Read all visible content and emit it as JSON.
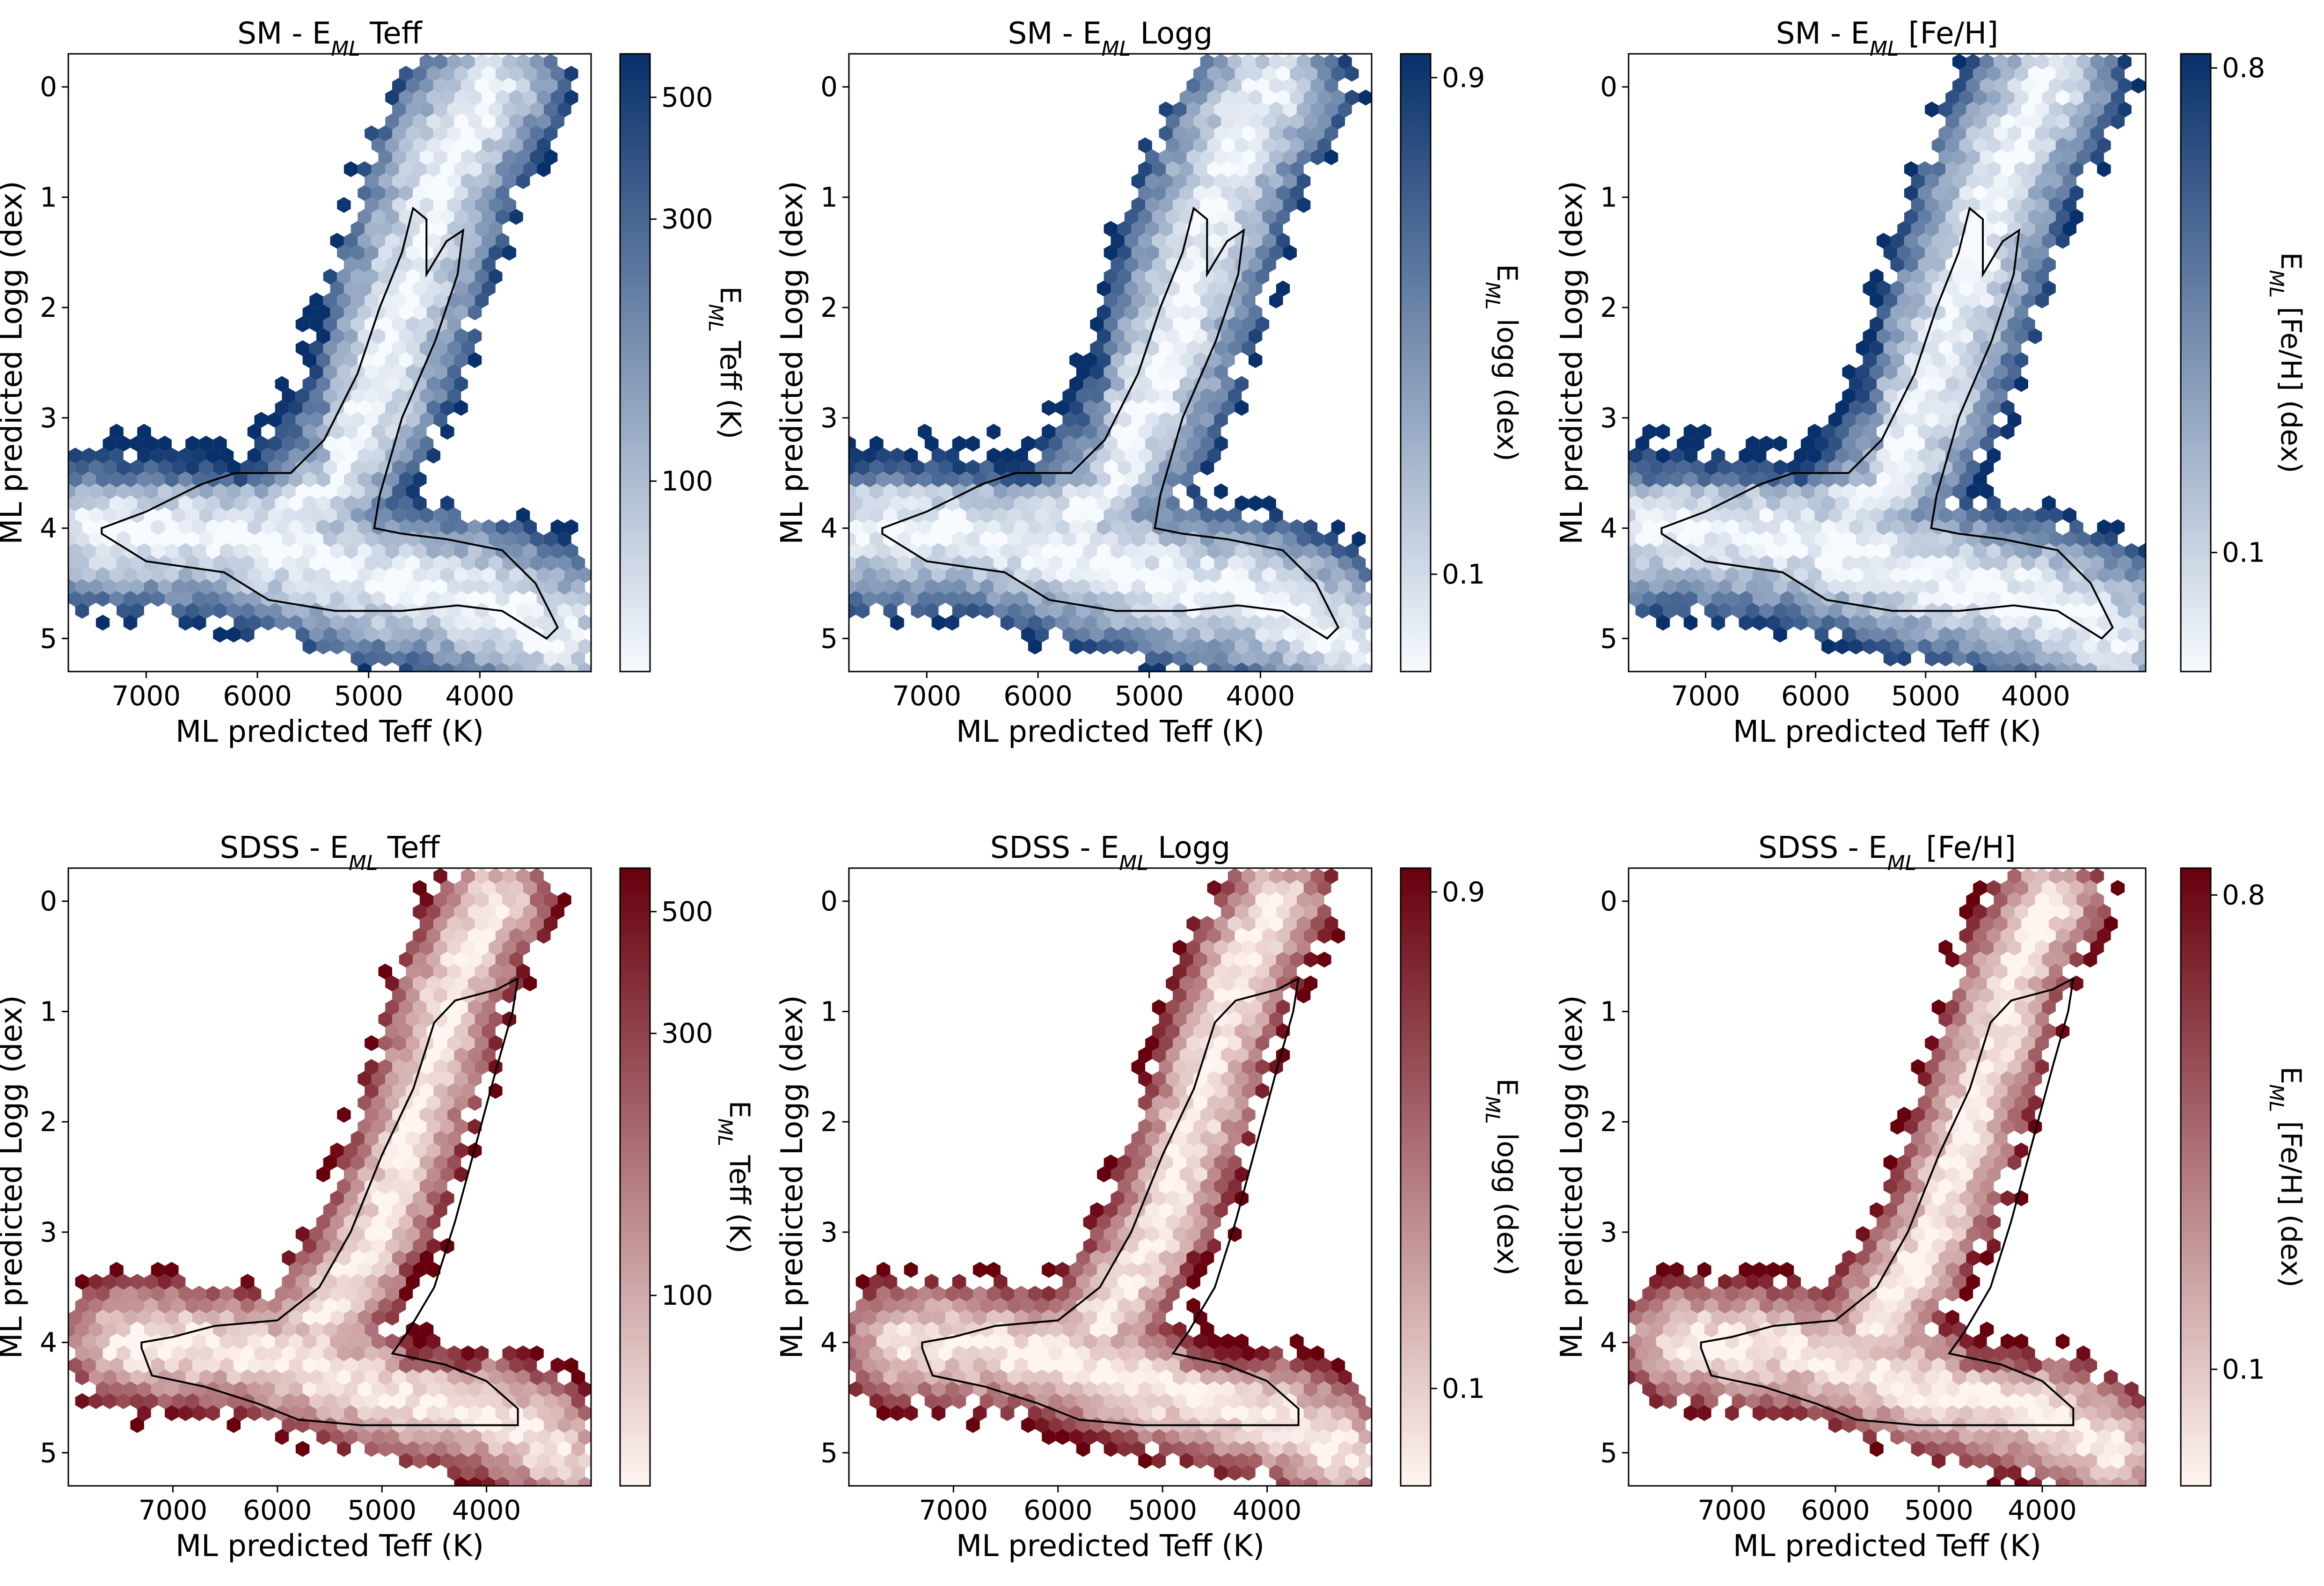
{
  "panels": [
    {
      "title_pre": "SM - E",
      "title_sub": "ML",
      "title_post": " Teff",
      "colorbar_label": "EML Teff (K)",
      "cb_label_pre": "E",
      "cb_label_sub": "ML",
      "cb_label_post": " Teff (K)",
      "scheme": "blue"
    },
    {
      "title_pre": "SM - E",
      "title_sub": "ML",
      "title_post": " Logg",
      "colorbar_label": "EML logg (dex)",
      "cb_label_pre": "E",
      "cb_label_sub": "ML",
      "cb_label_post": " logg (dex)",
      "scheme": "blue"
    },
    {
      "title_pre": "SM - E",
      "title_sub": "ML",
      "title_post": " [Fe/H]",
      "colorbar_label": "EML [Fe/H] (dex)",
      "cb_label_pre": "E",
      "cb_label_sub": "ML",
      "cb_label_post": " [Fe/H] (dex)",
      "scheme": "blue"
    },
    {
      "title_pre": "SDSS - E",
      "title_sub": "ML",
      "title_post": " Teff",
      "colorbar_label": "EML Teff (K)",
      "cb_label_pre": "E",
      "cb_label_sub": "ML",
      "cb_label_post": " Teff (K)",
      "scheme": "red"
    },
    {
      "title_pre": "SDSS - E",
      "title_sub": "ML",
      "title_post": " Logg",
      "colorbar_label": "EML logg (dex)",
      "cb_label_pre": "E",
      "cb_label_sub": "ML",
      "cb_label_post": " logg (dex)",
      "scheme": "red"
    },
    {
      "title_pre": "SDSS - E",
      "title_sub": "ML",
      "title_post": " [Fe/H]",
      "colorbar_label": "EML [Fe/H] (dex)",
      "cb_label_pre": "E",
      "cb_label_sub": "ML",
      "cb_label_post": " [Fe/H] (dex)",
      "scheme": "red"
    }
  ],
  "colors": {
    "blue_low": "#f7fbff",
    "blue_high": "#08306b",
    "red_low": "#fff5f0",
    "red_high": "#67000d",
    "contour": "#000000"
  },
  "chart_data": [
    {
      "type": "heatmap",
      "subtype": "hexbin",
      "title": "SM - EML Teff",
      "xlabel": "ML predicted Teff (K)",
      "ylabel": "ML predicted Logg (dex)",
      "colorbar_label": "EML Teff (K)",
      "xlim": [
        7700,
        3000
      ],
      "ylim": [
        5.3,
        -0.3
      ],
      "xticks": [
        "7000",
        "6000",
        "5000",
        "4000"
      ],
      "yticks": [
        "0",
        "1",
        "2",
        "3",
        "4",
        "5"
      ],
      "colorbar_scale": "log",
      "colorbar_range": [
        45,
        600
      ],
      "colorbar_ticks": [
        "100",
        "300",
        "500"
      ]
    },
    {
      "type": "heatmap",
      "subtype": "hexbin",
      "title": "SM - EML Logg",
      "xlabel": "ML predicted Teff (K)",
      "ylabel": "ML predicted Logg (dex)",
      "colorbar_label": "EML logg (dex)",
      "xlim": [
        7700,
        3000
      ],
      "ylim": [
        5.3,
        -0.3
      ],
      "xticks": [
        "7000",
        "6000",
        "5000",
        "4000"
      ],
      "yticks": [
        "0",
        "1",
        "2",
        "3",
        "4",
        "5"
      ],
      "colorbar_scale": "log",
      "colorbar_range": [
        0.065,
        1.0
      ],
      "colorbar_ticks": [
        "0.1",
        "0.9"
      ]
    },
    {
      "type": "heatmap",
      "subtype": "hexbin",
      "title": "SM - EML [Fe/H]",
      "xlabel": "ML predicted Teff (K)",
      "ylabel": "ML predicted Logg (dex)",
      "colorbar_label": "EML [Fe/H] (dex)",
      "xlim": [
        7700,
        3000
      ],
      "ylim": [
        5.3,
        -0.3
      ],
      "xticks": [
        "7000",
        "6000",
        "5000",
        "4000"
      ],
      "yticks": [
        "0",
        "1",
        "2",
        "3",
        "4",
        "5"
      ],
      "colorbar_scale": "log",
      "colorbar_range": [
        0.06,
        0.85
      ],
      "colorbar_ticks": [
        "0.1",
        "0.8"
      ]
    },
    {
      "type": "heatmap",
      "subtype": "hexbin",
      "title": "SDSS - EML Teff",
      "xlabel": "ML predicted Teff (K)",
      "ylabel": "ML predicted Logg (dex)",
      "colorbar_label": "EML Teff (K)",
      "xlim": [
        8000,
        3000
      ],
      "ylim": [
        5.3,
        -0.3
      ],
      "xticks": [
        "7000",
        "6000",
        "5000",
        "4000"
      ],
      "yticks": [
        "0",
        "1",
        "2",
        "3",
        "4",
        "5"
      ],
      "colorbar_scale": "log",
      "colorbar_range": [
        45,
        600
      ],
      "colorbar_ticks": [
        "100",
        "300",
        "500"
      ]
    },
    {
      "type": "heatmap",
      "subtype": "hexbin",
      "title": "SDSS - EML Logg",
      "xlabel": "ML predicted Teff (K)",
      "ylabel": "ML predicted Logg (dex)",
      "colorbar_label": "EML logg (dex)",
      "xlim": [
        8000,
        3000
      ],
      "ylim": [
        5.3,
        -0.3
      ],
      "xticks": [
        "7000",
        "6000",
        "5000",
        "4000"
      ],
      "yticks": [
        "0",
        "1",
        "2",
        "3",
        "4",
        "5"
      ],
      "colorbar_scale": "log",
      "colorbar_range": [
        0.065,
        1.0
      ],
      "colorbar_ticks": [
        "0.1",
        "0.9"
      ]
    },
    {
      "type": "heatmap",
      "subtype": "hexbin",
      "title": "SDSS - EML [Fe/H]",
      "xlabel": "ML predicted Teff (K)",
      "ylabel": "ML predicted Logg (dex)",
      "colorbar_label": "EML [Fe/H] (dex)",
      "xlim": [
        8000,
        3000
      ],
      "ylim": [
        5.3,
        -0.3
      ],
      "xticks": [
        "7000",
        "6000",
        "5000",
        "4000"
      ],
      "yticks": [
        "0",
        "1",
        "2",
        "3",
        "4",
        "5"
      ],
      "colorbar_scale": "log",
      "colorbar_range": [
        0.06,
        0.9
      ],
      "colorbar_ticks": [
        "0.1",
        "0.8"
      ]
    }
  ]
}
